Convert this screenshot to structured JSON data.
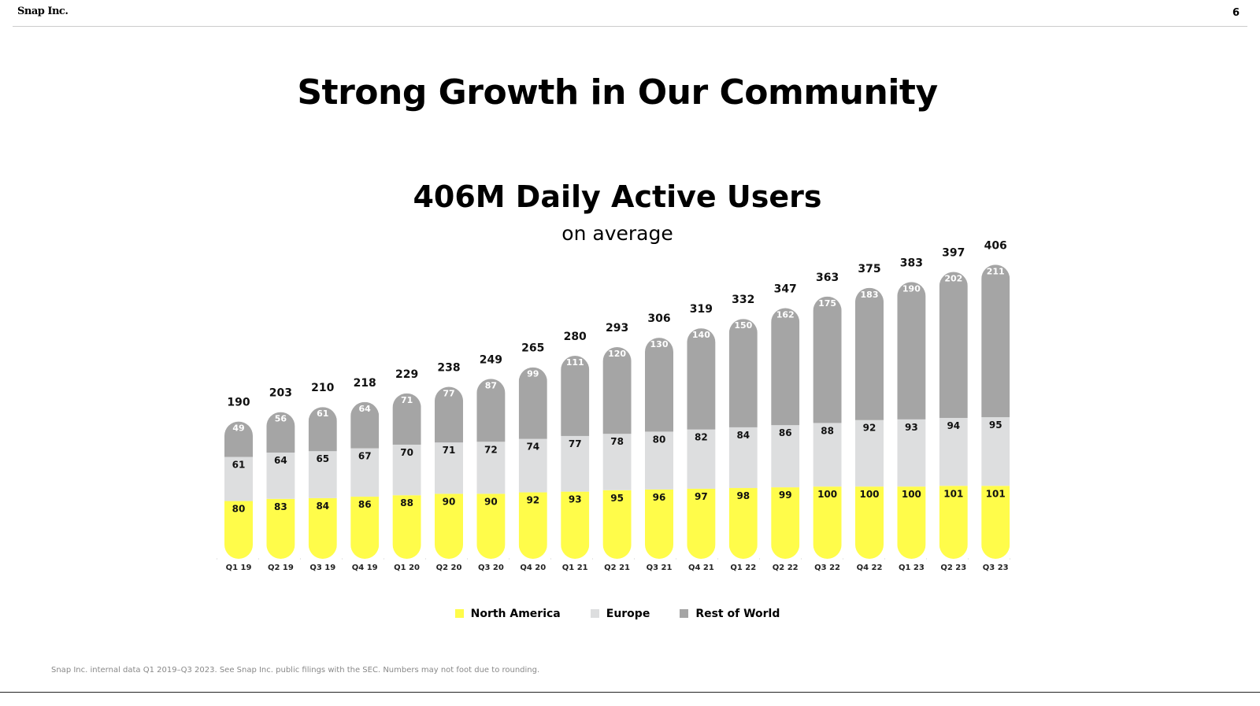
{
  "header": {
    "logo": "Snap Inc.",
    "page_number": "6"
  },
  "slide_title": "Strong Growth in Our Community",
  "chart_data": {
    "type": "bar",
    "stacked": true,
    "title": "406M Daily Active Users",
    "subtitle": "on average",
    "categories": [
      "Q1 19",
      "Q2 19",
      "Q3 19",
      "Q4 19",
      "Q1 20",
      "Q2 20",
      "Q3 20",
      "Q4 20",
      "Q1 21",
      "Q2 21",
      "Q3 21",
      "Q4 21",
      "Q1 22",
      "Q2 22",
      "Q3 22",
      "Q4 22",
      "Q1 23",
      "Q2 23",
      "Q3 23"
    ],
    "series": [
      {
        "name": "North America",
        "color": "#FFFC4A",
        "values": [
          80,
          83,
          84,
          86,
          88,
          90,
          90,
          92,
          93,
          95,
          96,
          97,
          98,
          99,
          100,
          100,
          100,
          101,
          101
        ]
      },
      {
        "name": "Europe",
        "color": "#DDDEDF",
        "values": [
          61,
          64,
          65,
          67,
          70,
          71,
          72,
          74,
          77,
          78,
          80,
          82,
          84,
          86,
          88,
          92,
          93,
          94,
          95
        ]
      },
      {
        "name": "Rest of World",
        "color": "#A5A5A5",
        "values": [
          49,
          56,
          61,
          64,
          71,
          77,
          87,
          99,
          111,
          120,
          130,
          140,
          150,
          162,
          175,
          183,
          190,
          202,
          211
        ]
      }
    ],
    "totals": [
      190,
      203,
      210,
      218,
      229,
      238,
      249,
      265,
      280,
      293,
      306,
      319,
      332,
      347,
      363,
      375,
      383,
      397,
      406
    ],
    "legend_position": "bottom",
    "grid": false
  },
  "footnote": "Snap Inc. internal data Q1 2019–Q3 2023. See Snap Inc. public filings with the SEC. Numbers may not foot due to rounding."
}
